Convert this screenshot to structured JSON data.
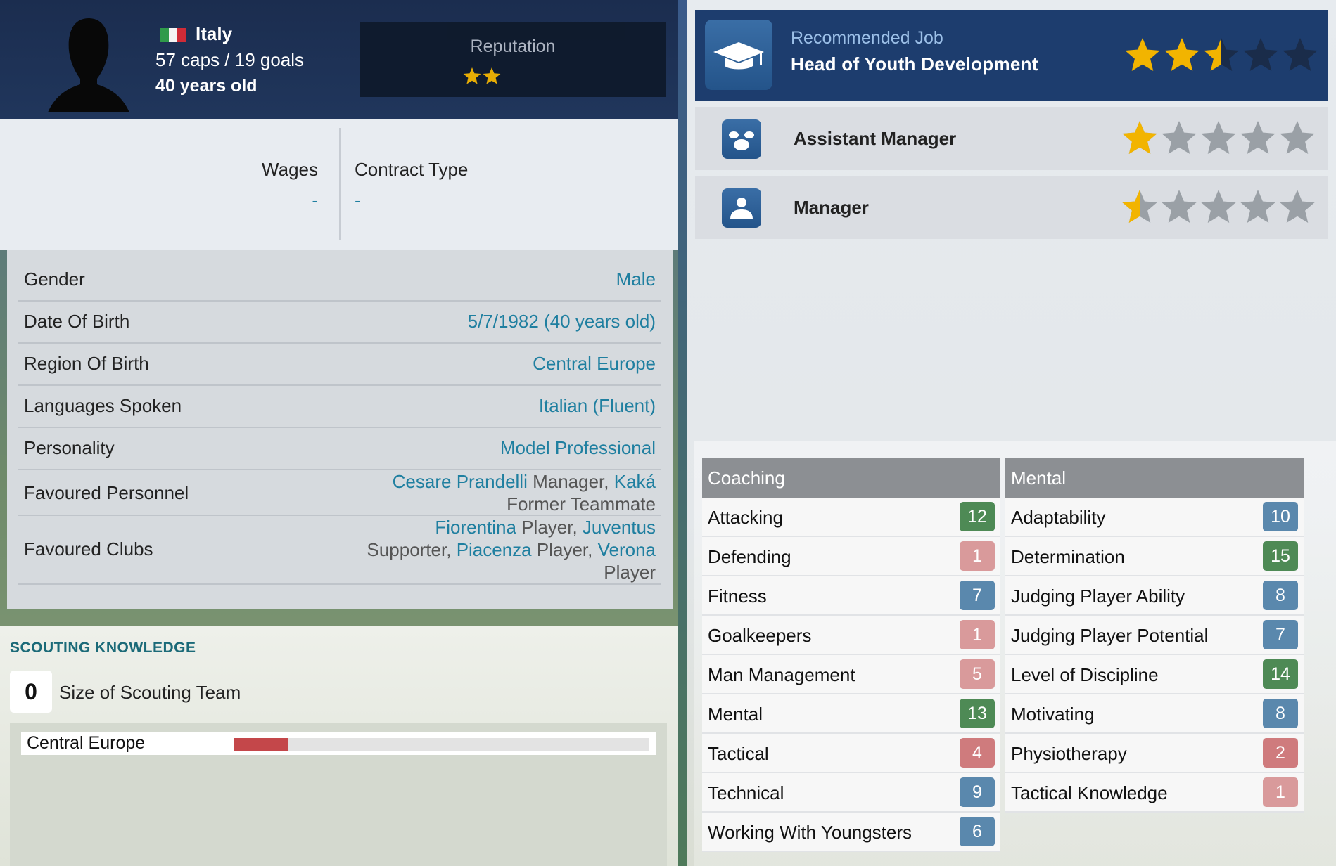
{
  "colors": {
    "badge_green": "#4e8a55",
    "badge_blue": "#5a88ad",
    "badge_pink": "#d99a9b",
    "badge_red": "#cf7b7d",
    "star_gold": "#f2b400",
    "star_grey": "#9aa0a6",
    "star_dark": "#1a2c4a",
    "link_teal": "#1f7fa0"
  },
  "header": {
    "avatar_icon": "person-silhouette-icon",
    "country": "Italy",
    "caps_goals": "57 caps / 19 goals",
    "age": "40 years old",
    "reputation_label": "Reputation",
    "reputation_stars": 2
  },
  "contract": {
    "wages_label": "Wages",
    "wages_value": "-",
    "contract_type_label": "Contract Type",
    "contract_type_value": "-"
  },
  "details": {
    "gender": {
      "label": "Gender",
      "value": "Male"
    },
    "dob": {
      "label": "Date Of Birth",
      "value": "5/7/1982 (40 years old)"
    },
    "region": {
      "label": "Region Of Birth",
      "value": "Central Europe"
    },
    "languages": {
      "label": "Languages Spoken",
      "value": "Italian (Fluent)"
    },
    "personality": {
      "label": "Personality",
      "value": "Model Professional"
    },
    "personnel": {
      "label": "Favoured Personnel",
      "line1_link1": "Cesare Prandelli",
      "line1_text": " Manager, ",
      "line1_link2": "Kaká",
      "line2": "Former Teammate"
    },
    "clubs": {
      "label": "Favoured Clubs",
      "line1_link1": "Fiorentina",
      "line1_text": " Player, ",
      "line1_link2": "Juventus",
      "line2_text1": "Supporter, ",
      "line2_link1": "Piacenza",
      "line2_text2": " Player, ",
      "line2_link2": "Verona",
      "line3": "Player"
    }
  },
  "scouting": {
    "title": "SCOUTING KNOWLEDGE",
    "team_size": "0",
    "team_size_label": "Size of Scouting Team",
    "region": "Central Europe",
    "region_knowledge": 0.13
  },
  "jobs": {
    "recommended_label": "Recommended Job",
    "recommended_title": "Head of Youth Development",
    "recommended_icon": "graduation-cap-icon",
    "recommended_stars": 2.5,
    "list": [
      {
        "title": "Assistant Manager",
        "icon": "assistant-manager-icon",
        "stars": 1
      },
      {
        "title": "Manager",
        "icon": "manager-person-icon",
        "stars": 0.5
      }
    ]
  },
  "coaching": {
    "header": "Coaching",
    "rows": [
      {
        "name": "Attacking",
        "value": "12",
        "color": "#4e8a55"
      },
      {
        "name": "Defending",
        "value": "1",
        "color": "#d99a9b"
      },
      {
        "name": "Fitness",
        "value": "7",
        "color": "#5a88ad"
      },
      {
        "name": "Goalkeepers",
        "value": "1",
        "color": "#d99a9b"
      },
      {
        "name": "Man Management",
        "value": "5",
        "color": "#d99a9b"
      },
      {
        "name": "Mental",
        "value": "13",
        "color": "#4e8a55"
      },
      {
        "name": "Tactical",
        "value": "4",
        "color": "#cf7b7d"
      },
      {
        "name": "Technical",
        "value": "9",
        "color": "#5a88ad"
      },
      {
        "name": "Working With Youngsters",
        "value": "6",
        "color": "#5a88ad"
      }
    ]
  },
  "mental": {
    "header": "Mental",
    "rows": [
      {
        "name": "Adaptability",
        "value": "10",
        "color": "#5a88ad"
      },
      {
        "name": "Determination",
        "value": "15",
        "color": "#4e8a55"
      },
      {
        "name": "Judging Player Ability",
        "value": "8",
        "color": "#5a88ad"
      },
      {
        "name": "Judging Player Potential",
        "value": "7",
        "color": "#5a88ad"
      },
      {
        "name": "Level of Discipline",
        "value": "14",
        "color": "#4e8a55"
      },
      {
        "name": "Motivating",
        "value": "8",
        "color": "#5a88ad"
      },
      {
        "name": "Physiotherapy",
        "value": "2",
        "color": "#cf7b7d"
      },
      {
        "name": "Tactical Knowledge",
        "value": "1",
        "color": "#d99a9b"
      }
    ]
  }
}
